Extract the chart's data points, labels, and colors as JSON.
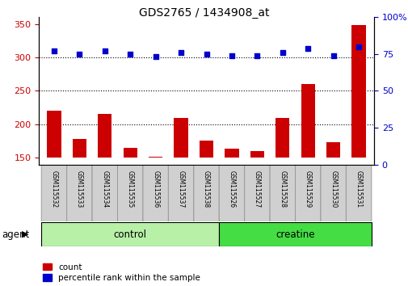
{
  "title": "GDS2765 / 1434908_at",
  "samples": [
    "GSM115532",
    "GSM115533",
    "GSM115534",
    "GSM115535",
    "GSM115536",
    "GSM115537",
    "GSM115538",
    "GSM115526",
    "GSM115527",
    "GSM115528",
    "GSM115529",
    "GSM115530",
    "GSM115531"
  ],
  "counts": [
    220,
    178,
    216,
    165,
    151,
    210,
    176,
    163,
    160,
    209,
    260,
    173,
    348
  ],
  "percentile_ranks": [
    77,
    75,
    77,
    75,
    73,
    76,
    75,
    74,
    74,
    76,
    79,
    74,
    80
  ],
  "groups": [
    {
      "label": "control",
      "start": 0,
      "end": 7,
      "color": "#b8f0a8"
    },
    {
      "label": "creatine",
      "start": 7,
      "end": 13,
      "color": "#44dd44"
    }
  ],
  "bar_color": "#cc0000",
  "dot_color": "#0000cc",
  "ylim_left": [
    140,
    360
  ],
  "ylim_right": [
    0,
    100
  ],
  "yticks_left": [
    150,
    200,
    250,
    300,
    350
  ],
  "yticks_right": [
    0,
    25,
    50,
    75,
    100
  ],
  "agent_label": "agent",
  "legend_count_label": "count",
  "legend_pct_label": "percentile rank within the sample",
  "grid_dotted_at": [
    200,
    250,
    300
  ],
  "bar_bottom": 150,
  "tick_label_color_left": "#cc0000",
  "tick_label_color_right": "#0000cc"
}
